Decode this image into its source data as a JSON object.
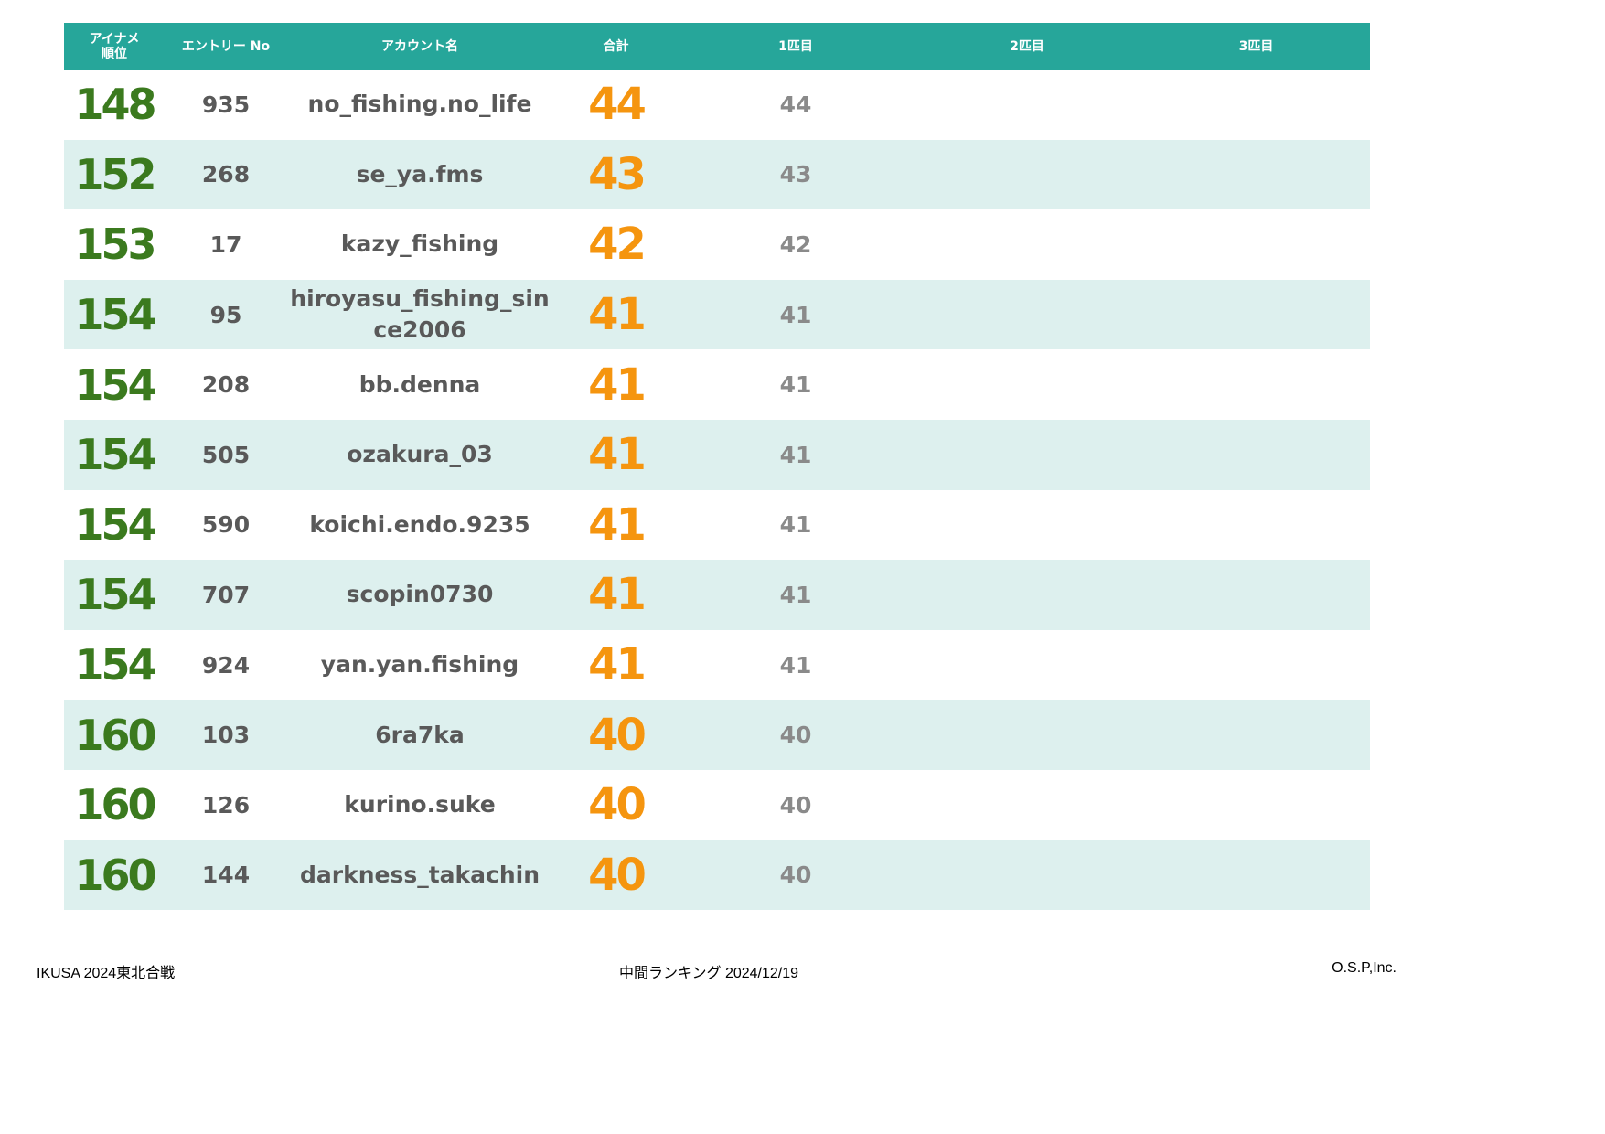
{
  "header": {
    "rank_label": "アイナメ",
    "rank_label2": "順位",
    "entry_label": "エントリー No",
    "account_label": "アカウント名",
    "total_label": "合計",
    "fish1_label": "1匹目",
    "fish2_label": "2匹目",
    "fish3_label": "3匹目"
  },
  "rows": [
    {
      "rank": "148",
      "entry": "935",
      "account": "no_fishing.no_life",
      "total": "44",
      "fish1": "44",
      "fish2": "",
      "fish3": ""
    },
    {
      "rank": "152",
      "entry": "268",
      "account": "se_ya.fms",
      "total": "43",
      "fish1": "43",
      "fish2": "",
      "fish3": ""
    },
    {
      "rank": "153",
      "entry": "17",
      "account": "kazy_fishing",
      "total": "42",
      "fish1": "42",
      "fish2": "",
      "fish3": ""
    },
    {
      "rank": "154",
      "entry": "95",
      "account": "hiroyasu_fishing_since2006",
      "total": "41",
      "fish1": "41",
      "fish2": "",
      "fish3": ""
    },
    {
      "rank": "154",
      "entry": "208",
      "account": "bb.denna",
      "total": "41",
      "fish1": "41",
      "fish2": "",
      "fish3": ""
    },
    {
      "rank": "154",
      "entry": "505",
      "account": "ozakura_03",
      "total": "41",
      "fish1": "41",
      "fish2": "",
      "fish3": ""
    },
    {
      "rank": "154",
      "entry": "590",
      "account": "koichi.endo.9235",
      "total": "41",
      "fish1": "41",
      "fish2": "",
      "fish3": ""
    },
    {
      "rank": "154",
      "entry": "707",
      "account": "scopin0730",
      "total": "41",
      "fish1": "41",
      "fish2": "",
      "fish3": ""
    },
    {
      "rank": "154",
      "entry": "924",
      "account": "yan.yan.fishing",
      "total": "41",
      "fish1": "41",
      "fish2": "",
      "fish3": ""
    },
    {
      "rank": "160",
      "entry": "103",
      "account": "6ra7ka",
      "total": "40",
      "fish1": "40",
      "fish2": "",
      "fish3": ""
    },
    {
      "rank": "160",
      "entry": "126",
      "account": "kurino.suke",
      "total": "40",
      "fish1": "40",
      "fish2": "",
      "fish3": ""
    },
    {
      "rank": "160",
      "entry": "144",
      "account": "darkness_takachin",
      "total": "40",
      "fish1": "40",
      "fish2": "",
      "fish3": ""
    }
  ],
  "footer": {
    "left": "IKUSA 2024東北合戦",
    "center": "中間ランキング 2024/12/19",
    "right": "O.S.P,Inc."
  },
  "colors": {
    "header_bg": "#26a69a",
    "alt_row_bg": "#ddf0ee",
    "rank": "#3b7a1e",
    "total": "#f5950f",
    "fish1": "#8a8a8a",
    "text": "#595959"
  }
}
